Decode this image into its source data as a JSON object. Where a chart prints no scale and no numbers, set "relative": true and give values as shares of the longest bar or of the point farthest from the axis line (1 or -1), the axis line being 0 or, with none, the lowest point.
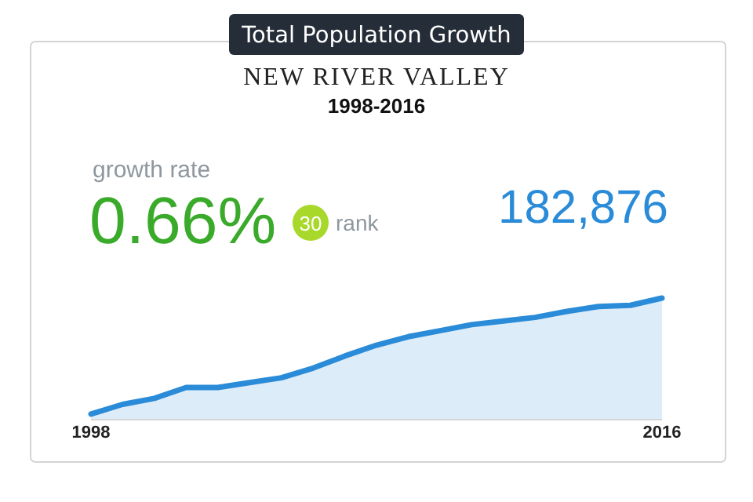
{
  "chart_data": {
    "type": "area",
    "title": "Total Population Growth",
    "subtitle": "NEW RIVER VALLEY",
    "annotations": [
      "1998-2016",
      "growth rate",
      "0.66%",
      "30",
      "rank",
      "182,876"
    ],
    "categories": [
      "1998",
      null,
      null,
      null,
      null,
      null,
      null,
      null,
      null,
      null,
      null,
      null,
      null,
      null,
      null,
      null,
      null,
      null,
      "2016"
    ],
    "relative": true,
    "series": [
      {
        "color": "#2a8bd8",
        "values": [
          0.04,
          0.12,
          0.17,
          0.26,
          0.26,
          0.3,
          0.34,
          0.42,
          0.52,
          0.61,
          0.68,
          0.73,
          0.78,
          0.81,
          0.84,
          0.89,
          0.93,
          0.94,
          1
        ]
      }
    ]
  }
}
